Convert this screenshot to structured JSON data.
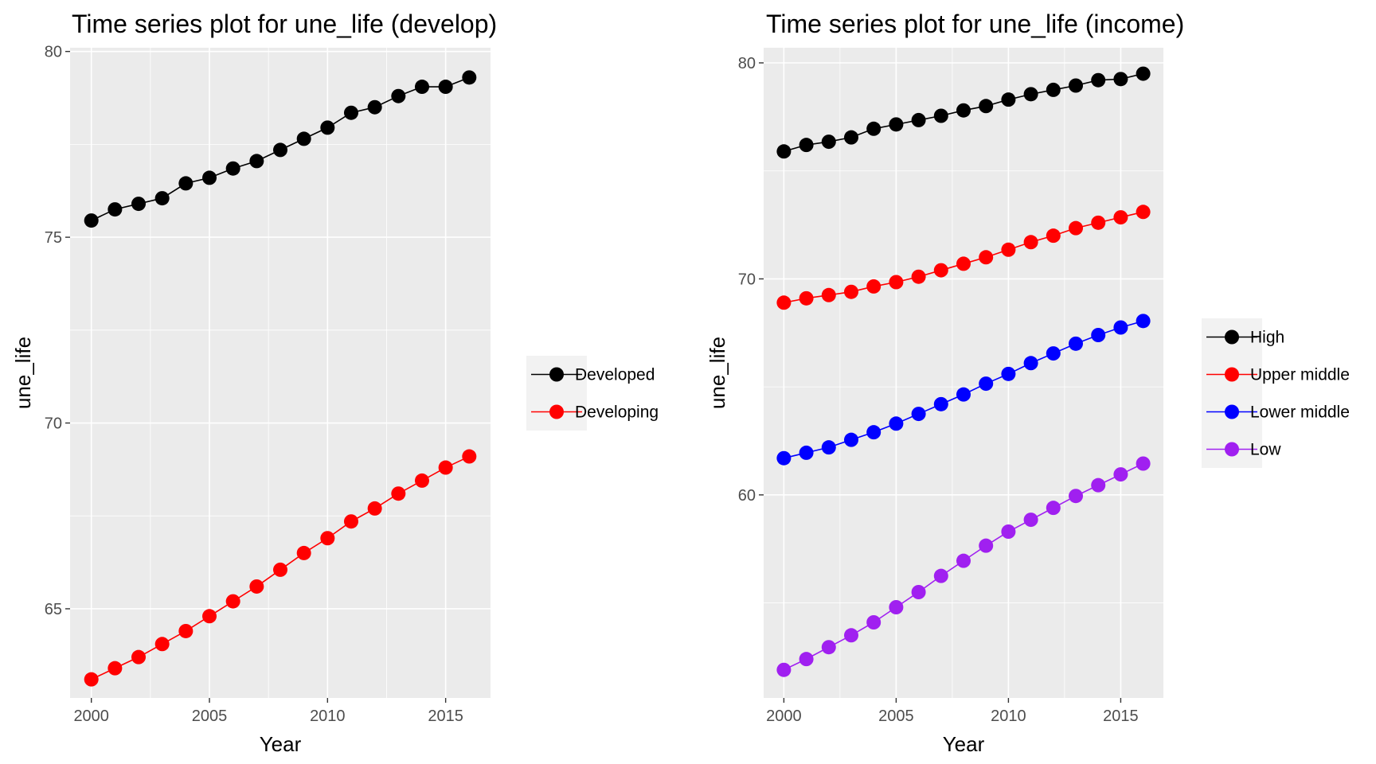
{
  "chart_data": [
    {
      "type": "line",
      "title": "Time series plot for une_life (develop)",
      "xlabel": "Year",
      "ylabel": "une_life",
      "xlim": [
        1999.1,
        2016.9
      ],
      "ylim": [
        62.6,
        80.1
      ],
      "x_ticks": [
        2000,
        2005,
        2010,
        2015
      ],
      "y_ticks": [
        65,
        70,
        75,
        80
      ],
      "grid": true,
      "markers": true,
      "legend_position": "right",
      "x": [
        2000,
        2001,
        2002,
        2003,
        2004,
        2005,
        2006,
        2007,
        2008,
        2009,
        2010,
        2011,
        2012,
        2013,
        2014,
        2015,
        2016
      ],
      "series": [
        {
          "name": "Developed",
          "color": "#000000",
          "values": [
            75.45,
            75.75,
            75.9,
            76.05,
            76.45,
            76.6,
            76.85,
            77.05,
            77.35,
            77.65,
            77.95,
            78.35,
            78.5,
            78.8,
            79.05,
            79.05,
            79.3
          ]
        },
        {
          "name": "Developing",
          "color": "#ff0000",
          "values": [
            63.1,
            63.4,
            63.7,
            64.05,
            64.4,
            64.8,
            65.2,
            65.6,
            66.05,
            66.5,
            66.9,
            67.35,
            67.7,
            68.1,
            68.45,
            68.8,
            69.1
          ]
        }
      ]
    },
    {
      "type": "line",
      "title": "Time series plot for une_life (income)",
      "xlabel": "Year",
      "ylabel": "une_life",
      "xlim": [
        1999.1,
        2016.9
      ],
      "ylim": [
        50.6,
        80.7
      ],
      "x_ticks": [
        2000,
        2005,
        2010,
        2015
      ],
      "y_ticks": [
        60,
        70,
        80
      ],
      "grid": true,
      "markers": true,
      "legend_position": "right",
      "x": [
        2000,
        2001,
        2002,
        2003,
        2004,
        2005,
        2006,
        2007,
        2008,
        2009,
        2010,
        2011,
        2012,
        2013,
        2014,
        2015,
        2016
      ],
      "series": [
        {
          "name": "High",
          "color": "#000000",
          "values": [
            75.9,
            76.2,
            76.35,
            76.55,
            76.95,
            77.15,
            77.35,
            77.55,
            77.8,
            78.0,
            78.3,
            78.55,
            78.75,
            78.95,
            79.2,
            79.25,
            79.5
          ]
        },
        {
          "name": "Upper middle",
          "color": "#ff0000",
          "values": [
            68.9,
            69.1,
            69.25,
            69.4,
            69.65,
            69.85,
            70.1,
            70.4,
            70.7,
            71.0,
            71.35,
            71.7,
            72.0,
            72.35,
            72.6,
            72.85,
            73.1
          ]
        },
        {
          "name": "Lower middle",
          "color": "#0000ff",
          "values": [
            61.7,
            61.95,
            62.2,
            62.55,
            62.9,
            63.3,
            63.75,
            64.2,
            64.65,
            65.15,
            65.6,
            66.1,
            66.55,
            67.0,
            67.4,
            67.75,
            68.05
          ]
        },
        {
          "name": "Low",
          "color": "#a020f0",
          "values": [
            51.9,
            52.4,
            52.95,
            53.5,
            54.1,
            54.8,
            55.5,
            56.25,
            56.95,
            57.65,
            58.3,
            58.85,
            59.4,
            59.95,
            60.45,
            60.95,
            61.45
          ]
        }
      ]
    }
  ]
}
